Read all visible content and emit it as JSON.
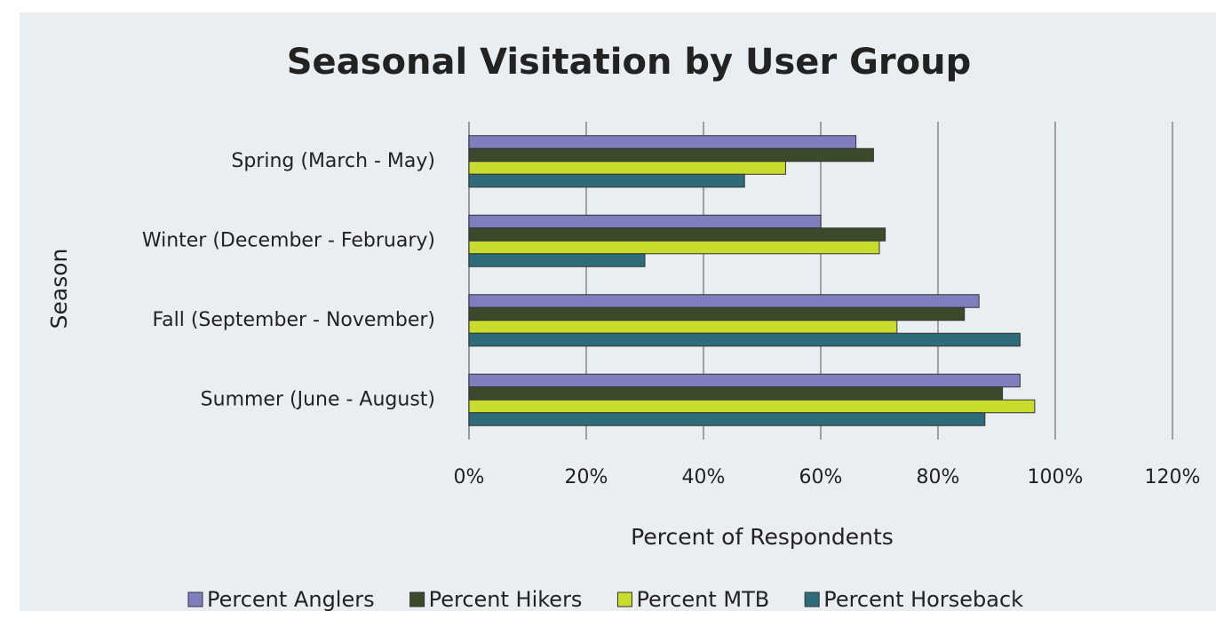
{
  "chart_data": {
    "type": "barh",
    "title": "Seasonal Visitation by User Group",
    "xlabel": "Percent of Respondents",
    "ylabel": "Season",
    "categories": [
      "Spring (March - May)",
      "Winter (December - February)",
      "Fall (September - November)",
      "Summer (June - August)"
    ],
    "series": [
      {
        "name": "Percent Anglers",
        "color": "#7f7fbf",
        "values": [
          66,
          60,
          87,
          94
        ]
      },
      {
        "name": "Percent Hikers",
        "color": "#3b4a2a",
        "values": [
          69,
          71,
          84.5,
          91
        ]
      },
      {
        "name": "Percent MTB",
        "color": "#c9dc2e",
        "values": [
          54,
          70,
          73,
          96.5
        ]
      },
      {
        "name": "Percent Horseback",
        "color": "#2f6c7a",
        "values": [
          47,
          30,
          94,
          88
        ]
      }
    ],
    "xlim": [
      0,
      120
    ],
    "xticks": [
      {
        "value": 0,
        "label": "0%"
      },
      {
        "value": 20,
        "label": "20%"
      },
      {
        "value": 40,
        "label": "40%"
      },
      {
        "value": 60,
        "label": "60%"
      },
      {
        "value": 80,
        "label": "80%"
      },
      {
        "value": 100,
        "label": "100%"
      },
      {
        "value": 120,
        "label": "120%"
      }
    ],
    "grid": true,
    "legend": "bottom"
  }
}
